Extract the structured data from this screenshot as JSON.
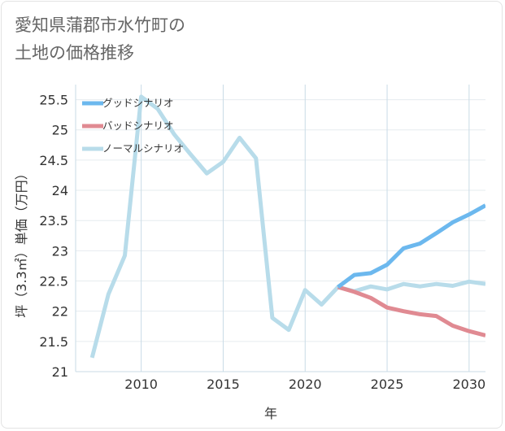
{
  "title": {
    "line1": "愛知県蒲郡市水竹町の",
    "line2": "土地の価格推移"
  },
  "chart_data": {
    "type": "line",
    "xlabel": "年",
    "ylabel": "坪（3.3㎡）単価（万円）",
    "xlim": [
      2006,
      2031
    ],
    "ylim": [
      21,
      25.75
    ],
    "xticks": [
      2010,
      2015,
      2020,
      2025,
      2030
    ],
    "yticks": [
      21,
      21.5,
      22,
      22.5,
      23,
      23.5,
      24,
      24.5,
      25,
      25.5
    ],
    "grid": true,
    "legend_position": "top-left",
    "series": [
      {
        "name": "グッドシナリオ",
        "color": "#6cb8ee",
        "x": [
          2022,
          2023,
          2024,
          2025,
          2026,
          2027,
          2028,
          2029,
          2030,
          2031
        ],
        "y": [
          22.4,
          22.6,
          22.63,
          22.77,
          23.04,
          23.12,
          23.29,
          23.47,
          23.6,
          23.75
        ]
      },
      {
        "name": "バッドシナリオ",
        "color": "#e08a92",
        "x": [
          2022,
          2023,
          2024,
          2025,
          2026,
          2027,
          2028,
          2029,
          2030,
          2031
        ],
        "y": [
          22.4,
          22.32,
          22.22,
          22.06,
          22.0,
          21.95,
          21.92,
          21.76,
          21.67,
          21.6
        ]
      },
      {
        "name": "ノーマルシナリオ",
        "color": "#b8dcea",
        "x": [
          2007,
          2008,
          2009,
          2010,
          2011,
          2012,
          2013,
          2014,
          2015,
          2016,
          2017,
          2018,
          2019,
          2020,
          2021,
          2022,
          2023,
          2024,
          2025,
          2026,
          2027,
          2028,
          2029,
          2030,
          2031
        ],
        "y": [
          21.23,
          22.28,
          22.92,
          25.55,
          25.35,
          24.93,
          24.6,
          24.28,
          24.47,
          24.87,
          24.53,
          21.89,
          21.69,
          22.35,
          22.11,
          22.4,
          22.33,
          22.41,
          22.36,
          22.45,
          22.41,
          22.45,
          22.42,
          22.49,
          22.45
        ]
      }
    ]
  }
}
